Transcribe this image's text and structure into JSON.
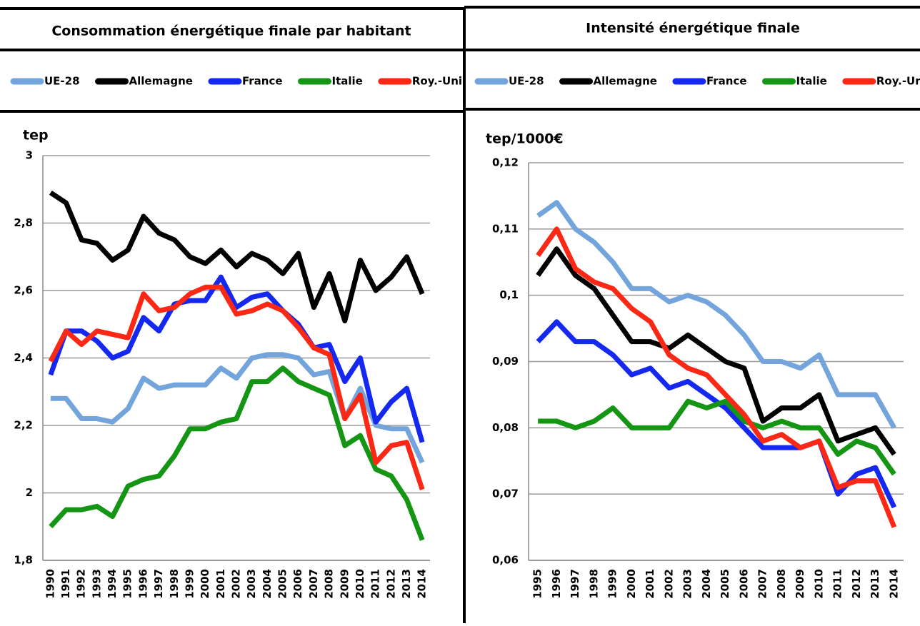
{
  "chart_data": [
    {
      "type": "line",
      "title": "Consommation énergétique finale par habitant",
      "ylabel": "tep",
      "categories": [
        "1990",
        "1991",
        "1992",
        "1993",
        "1994",
        "1995",
        "1996",
        "1997",
        "1998",
        "1999",
        "2000",
        "2001",
        "2002",
        "2003",
        "2004",
        "2005",
        "2006",
        "2007",
        "2008",
        "2009",
        "2010",
        "2011",
        "2012",
        "2013",
        "2014"
      ],
      "ylim": [
        1.8,
        3
      ],
      "yticks": [
        {
          "value": 1.8,
          "label": "1,8"
        },
        2,
        {
          "value": 2.2,
          "label": "2,2"
        },
        {
          "value": 2.4,
          "label": "2,4"
        },
        {
          "value": 2.6,
          "label": "2,6"
        },
        {
          "value": 2.8,
          "label": "2,8"
        },
        3
      ],
      "grid": true,
      "series": [
        {
          "name": "UE-28",
          "color": "#73a5dc",
          "values": [
            2.28,
            2.28,
            2.22,
            2.22,
            2.21,
            2.25,
            2.34,
            2.31,
            2.32,
            2.32,
            2.32,
            2.37,
            2.34,
            2.4,
            2.41,
            2.41,
            2.4,
            2.35,
            2.36,
            2.22,
            2.31,
            2.2,
            2.19,
            2.19,
            2.09
          ]
        },
        {
          "name": "Allemagne",
          "color": "#000000",
          "values": [
            2.89,
            2.86,
            2.75,
            2.74,
            2.69,
            2.72,
            2.82,
            2.77,
            2.75,
            2.7,
            2.68,
            2.72,
            2.67,
            2.71,
            2.69,
            2.65,
            2.71,
            2.55,
            2.65,
            2.51,
            2.69,
            2.6,
            2.64,
            2.7,
            2.59
          ]
        },
        {
          "name": "France",
          "color": "#1428f0",
          "values": [
            2.35,
            2.48,
            2.48,
            2.45,
            2.4,
            2.42,
            2.52,
            2.48,
            2.56,
            2.57,
            2.57,
            2.64,
            2.55,
            2.58,
            2.59,
            2.54,
            2.5,
            2.43,
            2.44,
            2.33,
            2.4,
            2.21,
            2.27,
            2.31,
            2.15
          ]
        },
        {
          "name": "Italie",
          "color": "#149614",
          "values": [
            1.9,
            1.95,
            1.95,
            1.96,
            1.93,
            2.02,
            2.04,
            2.05,
            2.11,
            2.19,
            2.19,
            2.21,
            2.22,
            2.33,
            2.33,
            2.37,
            2.33,
            2.31,
            2.29,
            2.14,
            2.17,
            2.07,
            2.05,
            1.98,
            1.86
          ]
        },
        {
          "name": "Roy.-Uni",
          "color": "#fa2814",
          "values": [
            2.39,
            2.48,
            2.44,
            2.48,
            2.47,
            2.46,
            2.59,
            2.54,
            2.55,
            2.59,
            2.61,
            2.61,
            2.53,
            2.54,
            2.56,
            2.54,
            2.49,
            2.43,
            2.41,
            2.22,
            2.29,
            2.09,
            2.14,
            2.15,
            2.01
          ]
        }
      ]
    },
    {
      "type": "line",
      "title": "Intensité énergétique finale",
      "ylabel": "tep/1000€",
      "categories": [
        "1995",
        "1996",
        "1997",
        "1998",
        "1999",
        "2000",
        "2001",
        "2002",
        "2003",
        "2004",
        "2005",
        "2006",
        "2007",
        "2008",
        "2009",
        "2010",
        "2011",
        "2012",
        "2013",
        "2014"
      ],
      "ylim": [
        0.06,
        0.12
      ],
      "yticks": [
        {
          "value": 0.06,
          "label": "0,06"
        },
        {
          "value": 0.07,
          "label": "0,07"
        },
        {
          "value": 0.08,
          "label": "0,08"
        },
        {
          "value": 0.09,
          "label": "0,09"
        },
        {
          "value": 0.1,
          "label": "0,1"
        },
        {
          "value": 0.11,
          "label": "0,11"
        },
        {
          "value": 0.12,
          "label": "0,12"
        }
      ],
      "grid": true,
      "series": [
        {
          "name": "UE-28",
          "color": "#73a5dc",
          "values": [
            0.112,
            0.114,
            0.11,
            0.108,
            0.105,
            0.101,
            0.101,
            0.099,
            0.1,
            0.099,
            0.097,
            0.094,
            0.09,
            0.09,
            0.089,
            0.091,
            0.085,
            0.085,
            0.085,
            0.08
          ]
        },
        {
          "name": "Allemagne",
          "color": "#000000",
          "values": [
            0.103,
            0.107,
            0.103,
            0.101,
            0.097,
            0.093,
            0.093,
            0.092,
            0.094,
            0.092,
            0.09,
            0.089,
            0.081,
            0.083,
            0.083,
            0.085,
            0.078,
            0.079,
            0.08,
            0.076
          ]
        },
        {
          "name": "France",
          "color": "#1428f0",
          "values": [
            0.093,
            0.096,
            0.093,
            0.093,
            0.091,
            0.088,
            0.089,
            0.086,
            0.087,
            0.085,
            0.083,
            0.08,
            0.077,
            0.077,
            0.077,
            0.078,
            0.07,
            0.073,
            0.074,
            0.068
          ]
        },
        {
          "name": "Italie",
          "color": "#149614",
          "values": [
            0.081,
            0.081,
            0.08,
            0.081,
            0.083,
            0.08,
            0.08,
            0.08,
            0.084,
            0.083,
            0.084,
            0.081,
            0.08,
            0.081,
            0.08,
            0.08,
            0.076,
            0.078,
            0.077,
            0.073
          ]
        },
        {
          "name": "Roy.-Uni",
          "color": "#fa2814",
          "values": [
            0.106,
            0.11,
            0.104,
            0.102,
            0.101,
            0.098,
            0.096,
            0.091,
            0.089,
            0.088,
            0.085,
            0.082,
            0.078,
            0.079,
            0.077,
            0.078,
            0.071,
            0.072,
            0.072,
            0.065
          ]
        }
      ]
    }
  ]
}
